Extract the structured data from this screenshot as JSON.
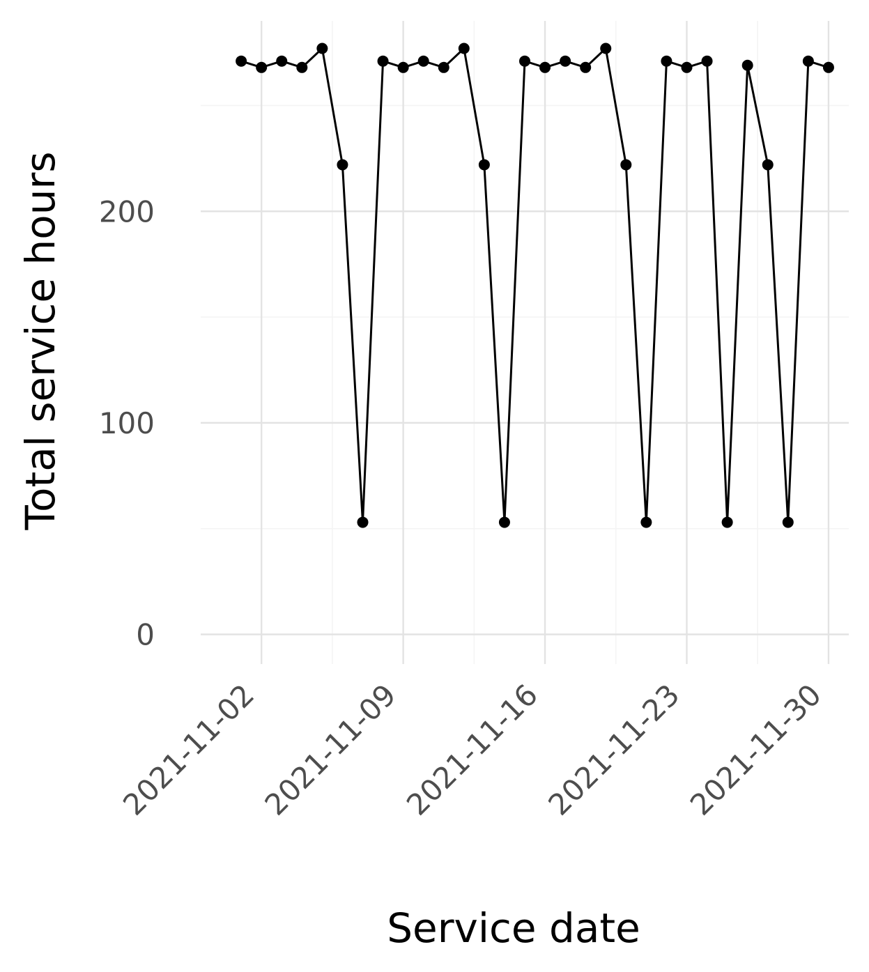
{
  "chart_data": {
    "type": "line",
    "xlabel": "Service date",
    "ylabel": "Total service hours",
    "x_ticks": [
      "2021-11-02",
      "2021-11-09",
      "2021-11-16",
      "2021-11-23",
      "2021-11-30"
    ],
    "y_ticks": [
      0,
      100,
      200
    ],
    "xlim": [
      "2021-10-30",
      "2021-12-01"
    ],
    "ylim": [
      -14,
      290
    ],
    "grid": true,
    "legend": "none",
    "colors": {
      "line": "#000000",
      "grid": "#e3e3e3",
      "tick_text": "#4d4d4d"
    },
    "series": [
      {
        "x": [
          "2021-11-01",
          "2021-11-02",
          "2021-11-03",
          "2021-11-04",
          "2021-11-05",
          "2021-11-06",
          "2021-11-07",
          "2021-11-08",
          "2021-11-09",
          "2021-11-10",
          "2021-11-11",
          "2021-11-12",
          "2021-11-13",
          "2021-11-14",
          "2021-11-15",
          "2021-11-16",
          "2021-11-17",
          "2021-11-18",
          "2021-11-19",
          "2021-11-20",
          "2021-11-21",
          "2021-11-22",
          "2021-11-23",
          "2021-11-24",
          "2021-11-25",
          "2021-11-26",
          "2021-11-27",
          "2021-11-28",
          "2021-11-29",
          "2021-11-30"
        ],
        "values": [
          271,
          268,
          271,
          268,
          277,
          222,
          53,
          271,
          268,
          271,
          268,
          277,
          222,
          53,
          271,
          268,
          271,
          268,
          277,
          222,
          53,
          271,
          268,
          271,
          53,
          269,
          222,
          53,
          271,
          268
        ]
      }
    ]
  }
}
